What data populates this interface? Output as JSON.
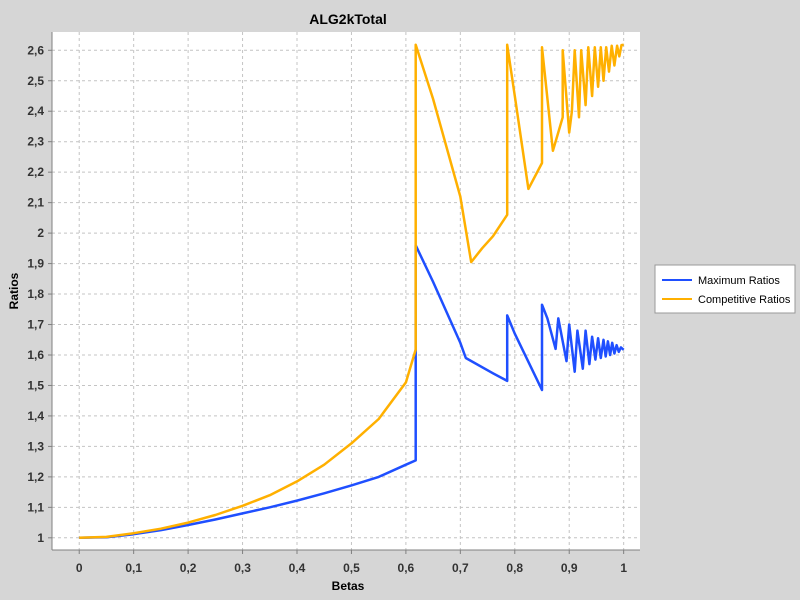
{
  "chart_data": {
    "type": "line",
    "title": "ALG2kTotal",
    "xlabel": "Betas",
    "ylabel": "Ratios",
    "xlim": [
      -0.05,
      1.03
    ],
    "ylim": [
      0.96,
      2.66
    ],
    "x_ticks": [
      0,
      0.1,
      0.2,
      0.3,
      0.4,
      0.5,
      0.6,
      0.7,
      0.8,
      0.9,
      1
    ],
    "x_tick_labels": [
      "0",
      "0,1",
      "0,2",
      "0,3",
      "0,4",
      "0,5",
      "0,6",
      "0,7",
      "0,8",
      "0,9",
      "1"
    ],
    "y_ticks": [
      1,
      1.1,
      1.2,
      1.3,
      1.4,
      1.5,
      1.6,
      1.7,
      1.8,
      1.9,
      2,
      2.1,
      2.2,
      2.3,
      2.4,
      2.5,
      2.6
    ],
    "y_tick_labels": [
      "1",
      "1,1",
      "1,2",
      "1,3",
      "1,4",
      "1,5",
      "1,6",
      "1,7",
      "1,8",
      "1,9",
      "2",
      "2,1",
      "2,2",
      "2,3",
      "2,4",
      "2,5",
      "2,6"
    ],
    "grid": true,
    "legend_position": "right",
    "series": [
      {
        "name": "Maximum Ratios",
        "color": "#1f4fff",
        "points": [
          [
            0,
            1.0
          ],
          [
            0.05,
            1.002
          ],
          [
            0.1,
            1.012
          ],
          [
            0.15,
            1.025
          ],
          [
            0.2,
            1.042
          ],
          [
            0.25,
            1.06
          ],
          [
            0.3,
            1.08
          ],
          [
            0.35,
            1.1
          ],
          [
            0.4,
            1.122
          ],
          [
            0.45,
            1.146
          ],
          [
            0.5,
            1.172
          ],
          [
            0.55,
            1.2
          ],
          [
            0.6,
            1.24
          ],
          [
            0.618,
            1.254
          ],
          [
            0.618,
            1.96
          ],
          [
            0.65,
            1.84
          ],
          [
            0.7,
            1.64
          ],
          [
            0.71,
            1.59
          ],
          [
            0.76,
            1.54
          ],
          [
            0.786,
            1.515
          ],
          [
            0.786,
            1.73
          ],
          [
            0.8,
            1.67
          ],
          [
            0.85,
            1.485
          ],
          [
            0.85,
            1.765
          ],
          [
            0.86,
            1.72
          ],
          [
            0.875,
            1.62
          ],
          [
            0.88,
            1.72
          ],
          [
            0.895,
            1.58
          ],
          [
            0.9,
            1.7
          ],
          [
            0.91,
            1.545
          ],
          [
            0.915,
            1.68
          ],
          [
            0.925,
            1.555
          ],
          [
            0.93,
            1.68
          ],
          [
            0.937,
            1.57
          ],
          [
            0.942,
            1.66
          ],
          [
            0.948,
            1.585
          ],
          [
            0.953,
            1.655
          ],
          [
            0.958,
            1.59
          ],
          [
            0.963,
            1.65
          ],
          [
            0.967,
            1.595
          ],
          [
            0.971,
            1.645
          ],
          [
            0.975,
            1.6
          ],
          [
            0.979,
            1.64
          ],
          [
            0.983,
            1.605
          ],
          [
            0.987,
            1.632
          ],
          [
            0.991,
            1.61
          ],
          [
            0.995,
            1.625
          ],
          [
            1.0,
            1.617
          ]
        ]
      },
      {
        "name": "Competitive Ratios",
        "color": "#ffb000",
        "points": [
          [
            0,
            1.0
          ],
          [
            0.05,
            1.003
          ],
          [
            0.1,
            1.015
          ],
          [
            0.15,
            1.03
          ],
          [
            0.2,
            1.05
          ],
          [
            0.25,
            1.075
          ],
          [
            0.3,
            1.105
          ],
          [
            0.35,
            1.14
          ],
          [
            0.4,
            1.185
          ],
          [
            0.45,
            1.24
          ],
          [
            0.5,
            1.31
          ],
          [
            0.55,
            1.39
          ],
          [
            0.6,
            1.51
          ],
          [
            0.618,
            1.618
          ],
          [
            0.618,
            2.618
          ],
          [
            0.65,
            2.44
          ],
          [
            0.7,
            2.12
          ],
          [
            0.72,
            1.905
          ],
          [
            0.74,
            1.95
          ],
          [
            0.76,
            1.99
          ],
          [
            0.786,
            2.06
          ],
          [
            0.786,
            2.618
          ],
          [
            0.8,
            2.45
          ],
          [
            0.825,
            2.145
          ],
          [
            0.85,
            2.23
          ],
          [
            0.85,
            2.61
          ],
          [
            0.87,
            2.27
          ],
          [
            0.888,
            2.38
          ],
          [
            0.888,
            2.6
          ],
          [
            0.9,
            2.33
          ],
          [
            0.905,
            2.4
          ],
          [
            0.91,
            2.6
          ],
          [
            0.918,
            2.38
          ],
          [
            0.922,
            2.6
          ],
          [
            0.93,
            2.42
          ],
          [
            0.935,
            2.61
          ],
          [
            0.942,
            2.45
          ],
          [
            0.947,
            2.61
          ],
          [
            0.953,
            2.48
          ],
          [
            0.958,
            2.61
          ],
          [
            0.963,
            2.5
          ],
          [
            0.968,
            2.61
          ],
          [
            0.973,
            2.53
          ],
          [
            0.978,
            2.615
          ],
          [
            0.983,
            2.55
          ],
          [
            0.988,
            2.615
          ],
          [
            0.992,
            2.58
          ],
          [
            0.996,
            2.617
          ],
          [
            1.0,
            2.618
          ]
        ]
      }
    ]
  }
}
